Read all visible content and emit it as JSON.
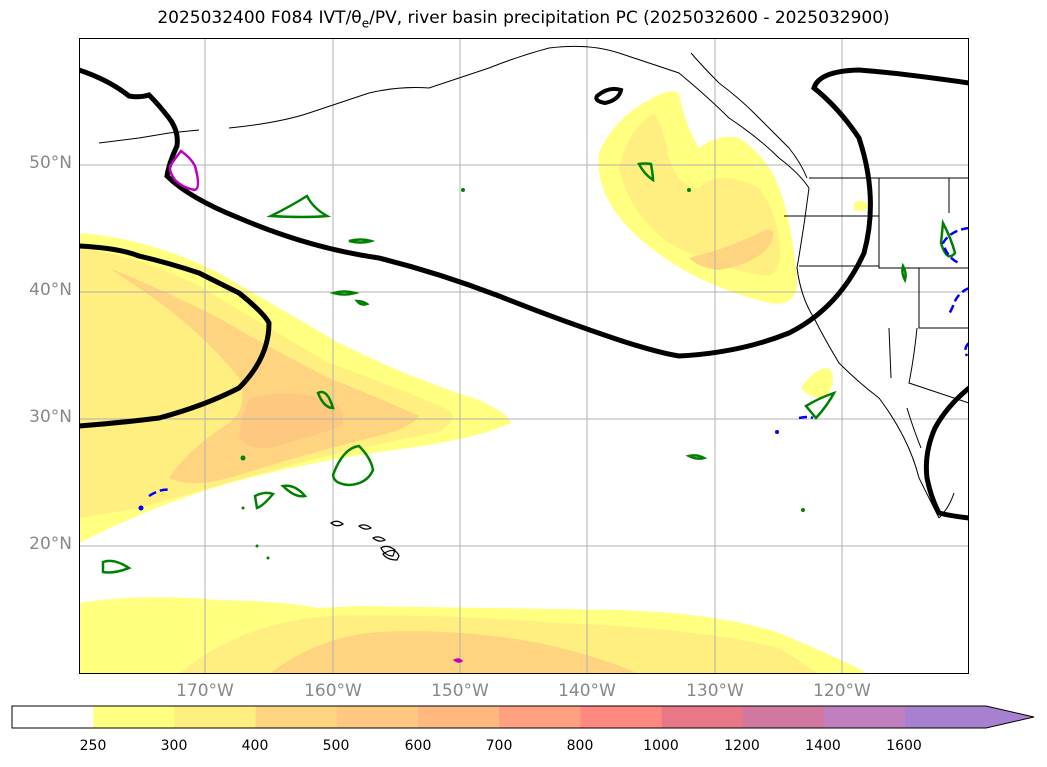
{
  "title": {
    "text": "2025032400 F084 IVT/θ",
    "sub": "e",
    "rest": "/PV, river basin precipitation PC (2025032600 - 2025032900)"
  },
  "map": {
    "lat_labels": [
      "50°N",
      "40°N",
      "30°N",
      "20°N"
    ],
    "lon_labels": [
      "170°W",
      "160°W",
      "150°W",
      "140°W",
      "130°W",
      "120°W"
    ],
    "shading_colors": [
      "#ffff80",
      "#ffee80",
      "#ffd480",
      "#ffb880"
    ]
  },
  "colorbar": {
    "ticks": [
      "250",
      "300",
      "400",
      "500",
      "600",
      "700",
      "800",
      "1000",
      "1200",
      "1400",
      "1600"
    ],
    "colors": [
      "#ffffff",
      "#ffff80",
      "#ffee80",
      "#ffd480",
      "#ffc880",
      "#ffb880",
      "#ffa080",
      "#ff8880",
      "#e87888",
      "#d078a0",
      "#c080c0",
      "#a880d0"
    ]
  }
}
